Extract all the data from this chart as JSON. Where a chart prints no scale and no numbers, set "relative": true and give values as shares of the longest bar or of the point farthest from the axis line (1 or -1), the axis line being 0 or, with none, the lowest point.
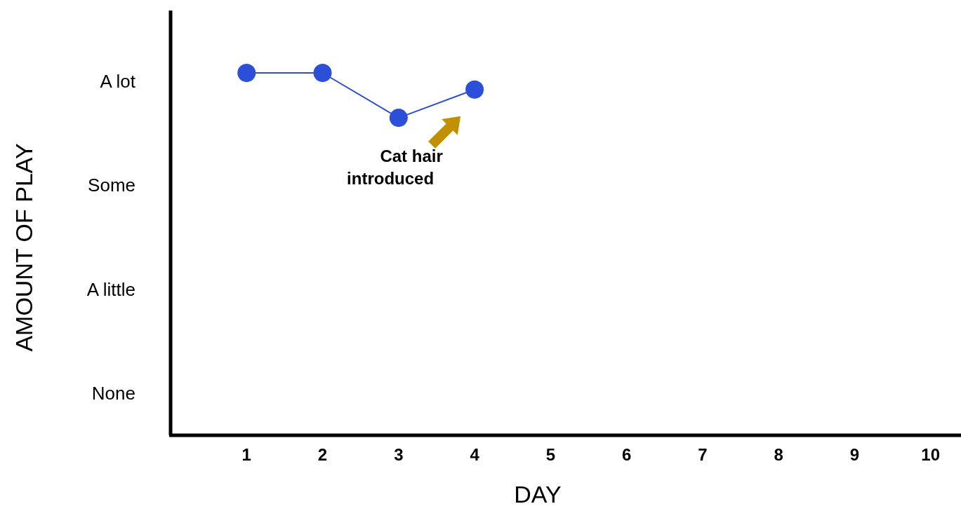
{
  "chart_data": {
    "type": "line",
    "xlabel": "DAY",
    "relative": true,
    "x": [
      1,
      2,
      3,
      4
    ],
    "series": [
      {
        "color": "#2b4fd8",
        "values": [
          1,
          1,
          0.876,
          0.954
        ]
      }
    ],
    "xlim": [
      0,
      10.4
    ],
    "xticks": [
      1,
      2,
      3,
      4,
      5,
      6,
      7,
      8,
      9,
      10
    ],
    "marker": "circle",
    "annotations": [
      "AMOUNT OF PLAY",
      "A lot",
      "Some",
      "A little",
      "None",
      "Cat hair\nintroduced"
    ]
  }
}
